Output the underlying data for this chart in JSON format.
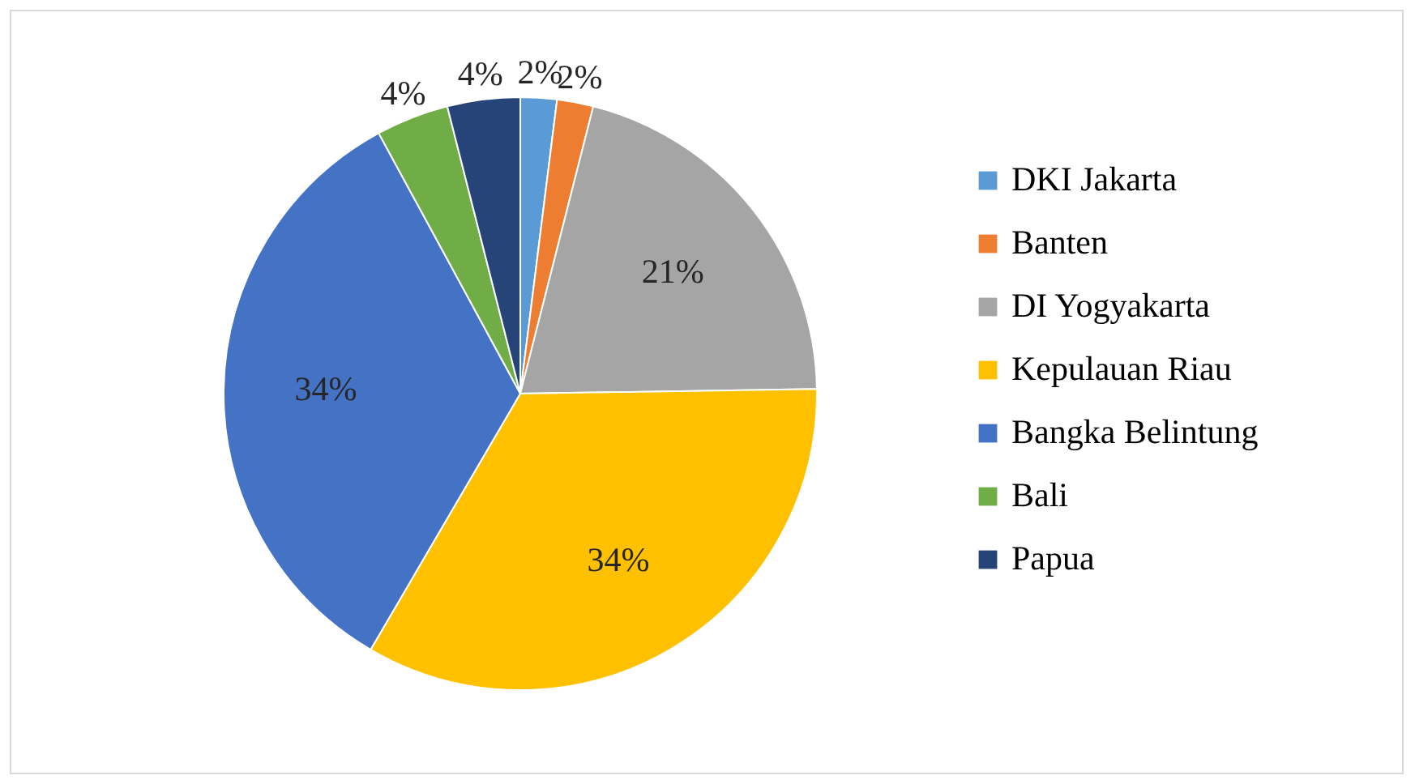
{
  "chart_data": {
    "type": "pie",
    "categories": [
      "DKI Jakarta",
      "Banten",
      "DI Yogyakarta",
      "Kepulauan Riau",
      "Bangka Belintung",
      "Bali",
      "Papua"
    ],
    "values": [
      2,
      2,
      21,
      34,
      34,
      4,
      4
    ],
    "colors": [
      "#5b9bd5",
      "#ed7d31",
      "#a5a5a5",
      "#ffc000",
      "#4472c4",
      "#70ad47",
      "#264478"
    ],
    "value_labels": [
      "2%",
      "2%",
      "21%",
      "34%",
      "34%",
      "4%",
      "4%"
    ],
    "legend": "right"
  }
}
